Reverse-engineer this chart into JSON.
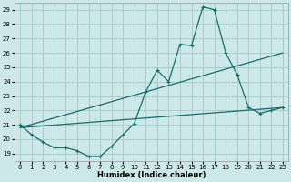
{
  "xlabel": "Humidex (Indice chaleur)",
  "xlim": [
    -0.5,
    23.5
  ],
  "ylim": [
    18.5,
    29.5
  ],
  "xticks": [
    0,
    1,
    2,
    3,
    4,
    5,
    6,
    7,
    8,
    9,
    10,
    11,
    12,
    13,
    14,
    15,
    16,
    17,
    18,
    19,
    20,
    21,
    22,
    23
  ],
  "yticks": [
    19,
    20,
    21,
    22,
    23,
    24,
    25,
    26,
    27,
    28,
    29
  ],
  "bg_color": "#cce8e8",
  "grid_color": "#aacccc",
  "line_color": "#1a6b6b",
  "line1_x": [
    0,
    1,
    2,
    3,
    4,
    5,
    6,
    7,
    8,
    9,
    10,
    11,
    12,
    13,
    14,
    15,
    16,
    17,
    18,
    19,
    20,
    21,
    22,
    23
  ],
  "line1_y": [
    21.0,
    20.3,
    19.8,
    19.4,
    19.4,
    19.2,
    18.8,
    18.8,
    19.5,
    20.3,
    21.1,
    23.3,
    24.8,
    24.0,
    26.6,
    26.5,
    29.2,
    29.0,
    26.0,
    24.5,
    22.2,
    21.8,
    22.0,
    22.2
  ],
  "line2_x": [
    0,
    23
  ],
  "line2_y": [
    20.8,
    26.0
  ],
  "line3_x": [
    0,
    23
  ],
  "line3_y": [
    20.8,
    22.2
  ]
}
